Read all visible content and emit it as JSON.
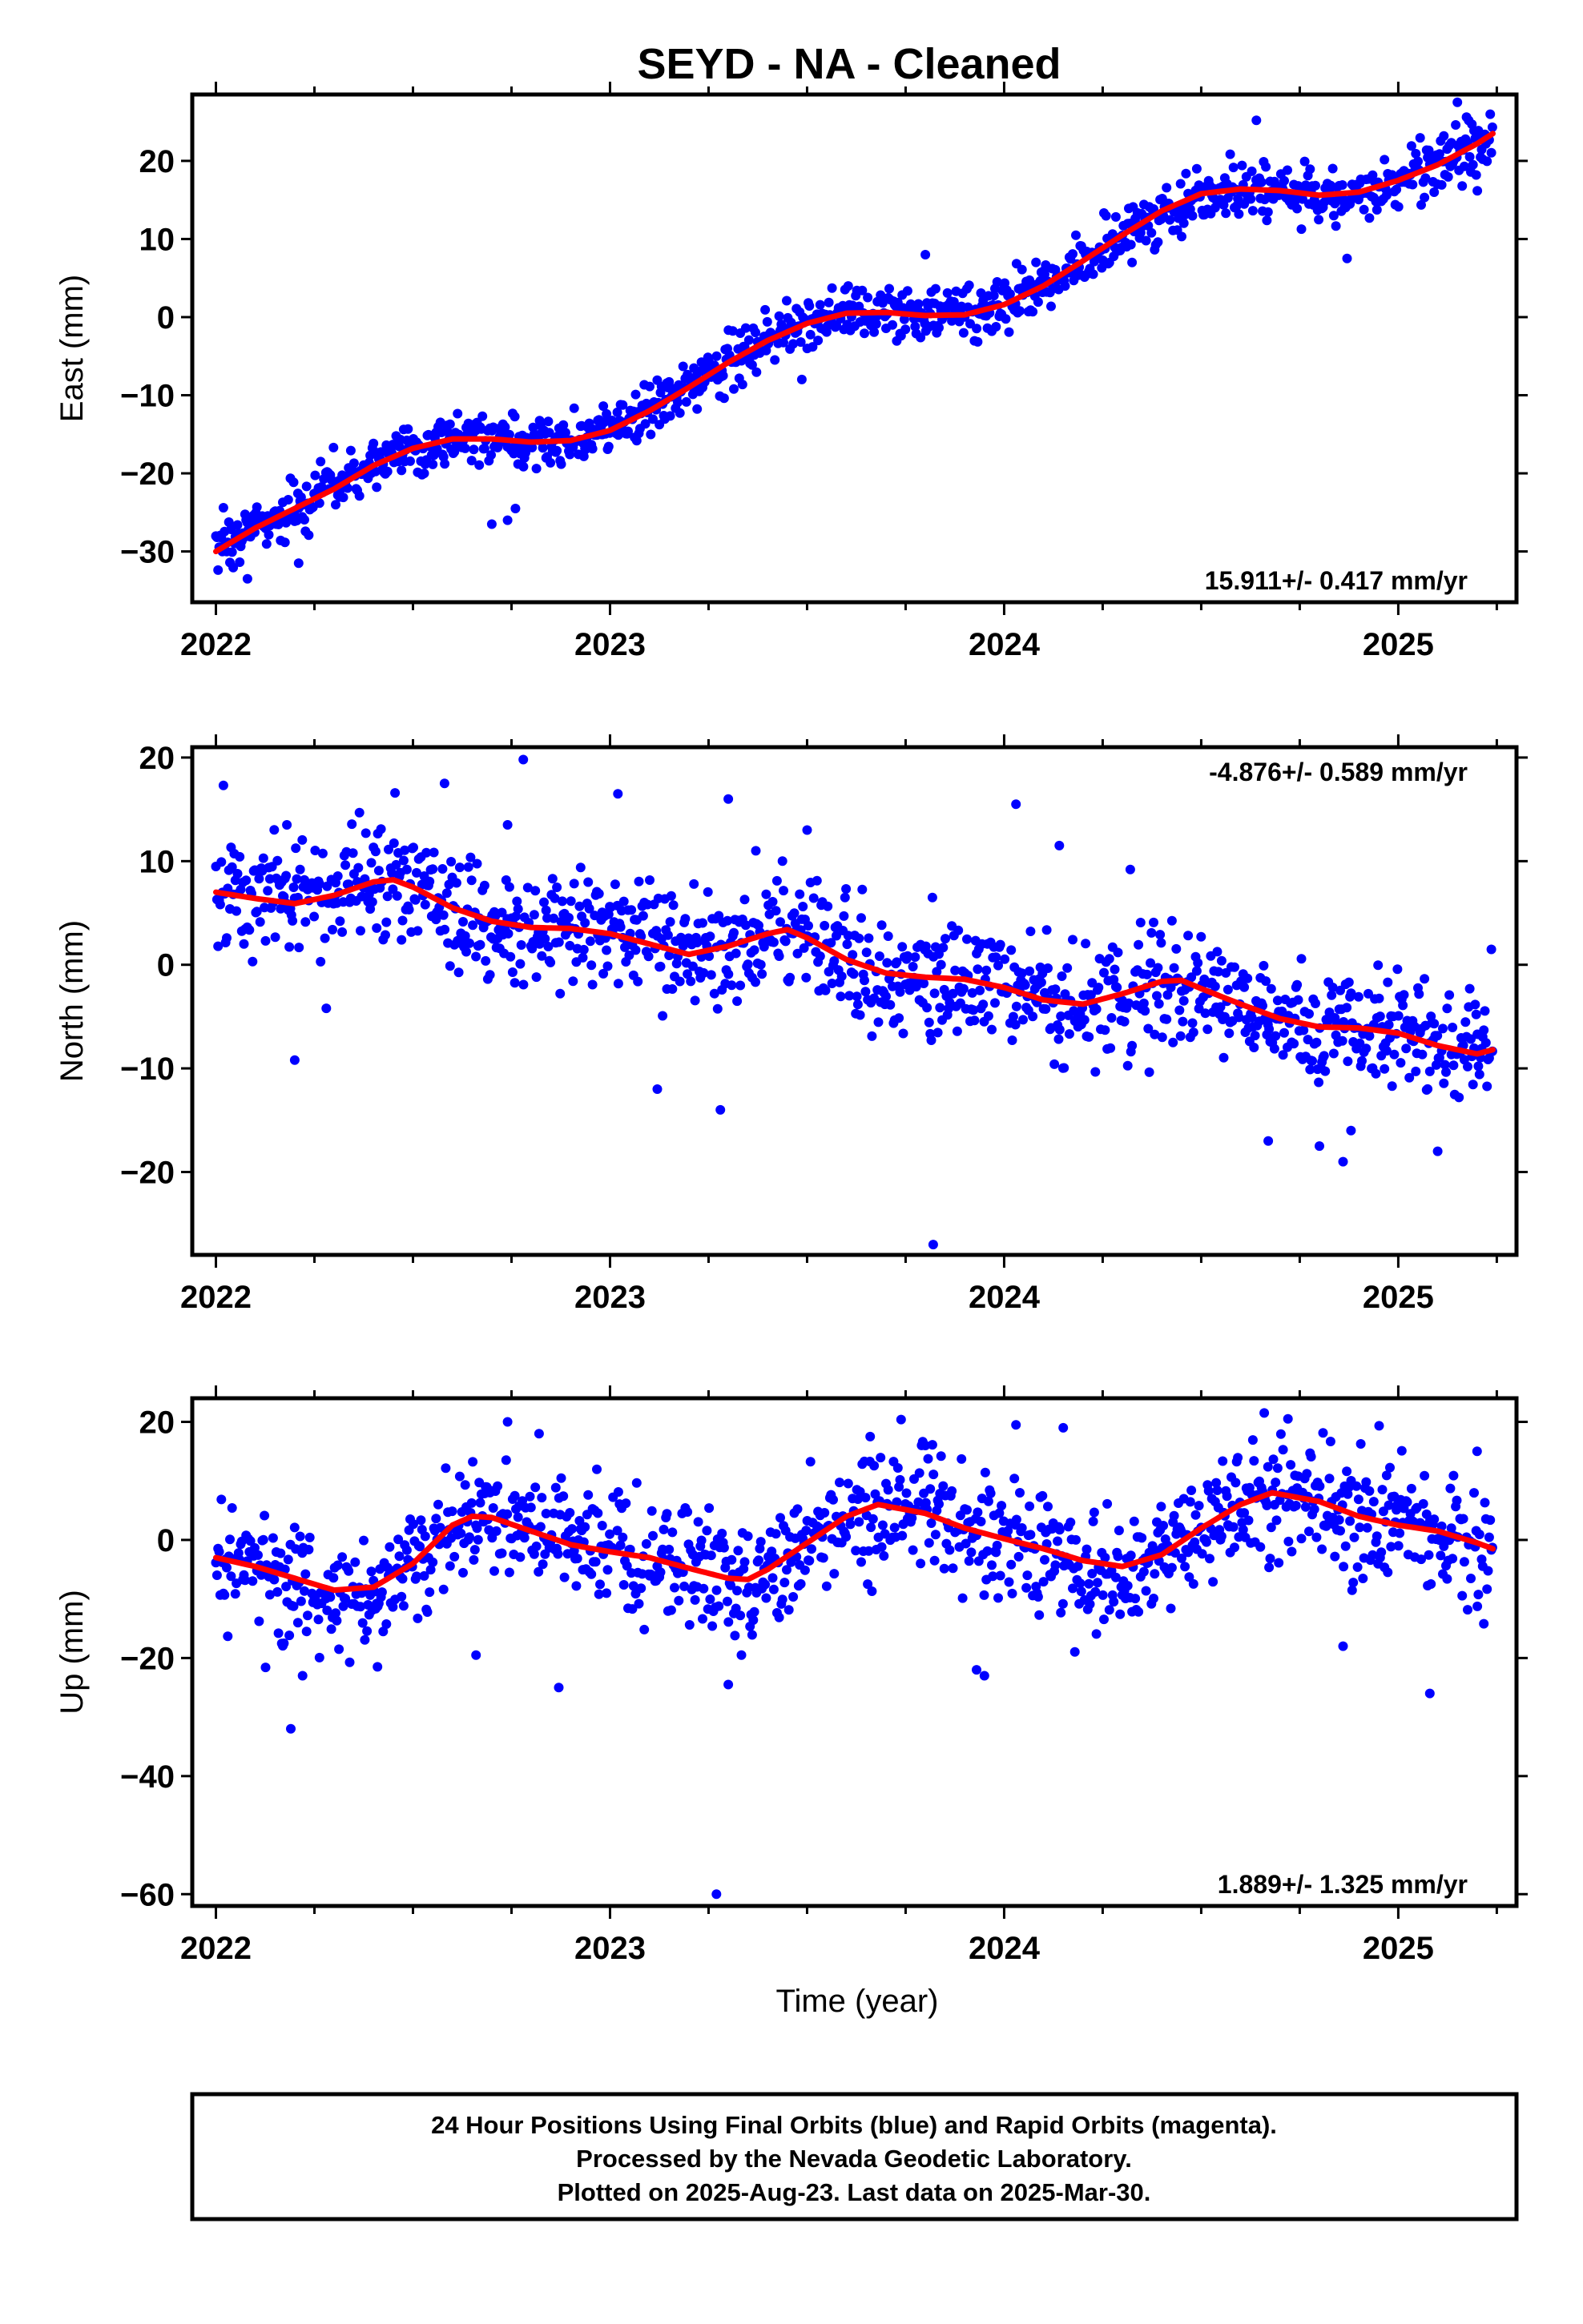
{
  "chart_data": {
    "type": "scatter",
    "title": "SEYD  - NA - Cleaned",
    "xlabel": "Time (year)",
    "xlim": [
      2021.94,
      2025.3
    ],
    "x_ticks": [
      2022,
      2023,
      2024,
      2025
    ],
    "x_tick_labels": [
      "2022",
      "2023",
      "2024",
      "2025"
    ],
    "x_minor_step": 0.25,
    "data_range": [
      2022.0,
      2025.24
    ],
    "marker_color": "#0000ff",
    "fit_color": "#ff0000",
    "grid": false,
    "panels": [
      {
        "id": "east",
        "ylabel": "East (mm)",
        "ylim": [
          -36.5,
          28.5
        ],
        "y_ticks": [
          -30,
          -20,
          -10,
          0,
          10,
          20
        ],
        "y_tick_labels": [
          "−30",
          "−20",
          "−10",
          "0",
          "10",
          "20"
        ],
        "rate": "15.911+/- 0.417 mm/yr",
        "rate_position": "bottom-right",
        "noise": 1.8,
        "outliers": [
          [
            2022.74,
            -26.0
          ],
          [
            2022.7,
            -26.5
          ],
          [
            2022.76,
            -24.5
          ],
          [
            2022.08,
            -33.5
          ],
          [
            2024.64,
            25.2
          ],
          [
            2023.8,
            8.0
          ],
          [
            2025.15,
            27.5
          ],
          [
            2022.21,
            -31.5
          ],
          [
            2024.87,
            7.5
          ]
        ],
        "fit": [
          [
            2022.0,
            -30.0
          ],
          [
            2022.1,
            -27.0
          ],
          [
            2022.2,
            -24.5
          ],
          [
            2022.3,
            -22.0
          ],
          [
            2022.4,
            -19.0
          ],
          [
            2022.5,
            -16.8
          ],
          [
            2022.6,
            -15.6
          ],
          [
            2022.7,
            -15.6
          ],
          [
            2022.8,
            -16.0
          ],
          [
            2022.9,
            -15.8
          ],
          [
            2023.0,
            -14.5
          ],
          [
            2023.1,
            -12.0
          ],
          [
            2023.2,
            -9.0
          ],
          [
            2023.3,
            -5.8
          ],
          [
            2023.4,
            -3.0
          ],
          [
            2023.5,
            -0.8
          ],
          [
            2023.6,
            0.5
          ],
          [
            2023.7,
            0.6
          ],
          [
            2023.8,
            0.2
          ],
          [
            2023.9,
            0.3
          ],
          [
            2024.0,
            1.6
          ],
          [
            2024.1,
            4.0
          ],
          [
            2024.2,
            7.2
          ],
          [
            2024.3,
            10.5
          ],
          [
            2024.4,
            13.6
          ],
          [
            2024.5,
            15.8
          ],
          [
            2024.6,
            16.4
          ],
          [
            2024.7,
            16.2
          ],
          [
            2024.8,
            15.6
          ],
          [
            2024.9,
            16.0
          ],
          [
            2025.0,
            17.5
          ],
          [
            2025.1,
            19.5
          ],
          [
            2025.2,
            22.2
          ],
          [
            2025.24,
            23.5
          ]
        ]
      },
      {
        "id": "north",
        "ylabel": "North (mm)",
        "ylim": [
          -28,
          21
        ],
        "y_ticks": [
          -20,
          -10,
          0,
          10,
          20
        ],
        "y_tick_labels": [
          "−20",
          "−10",
          "0",
          "10",
          "20"
        ],
        "rate": "-4.876+/- 0.589 mm/yr",
        "rate_position": "top-right",
        "noise": 2.8,
        "outliers": [
          [
            2022.2,
            -9.2
          ],
          [
            2022.18,
            13.5
          ],
          [
            2022.74,
            13.5
          ],
          [
            2022.78,
            19.8
          ],
          [
            2022.58,
            17.5
          ],
          [
            2023.02,
            16.5
          ],
          [
            2023.12,
            -12.0
          ],
          [
            2023.28,
            -14.0
          ],
          [
            2023.3,
            16.0
          ],
          [
            2023.5,
            13.0
          ],
          [
            2023.82,
            -27.0
          ],
          [
            2024.03,
            15.5
          ],
          [
            2024.14,
            11.5
          ],
          [
            2024.32,
            9.2
          ],
          [
            2024.67,
            -17.0
          ],
          [
            2024.8,
            -17.5
          ],
          [
            2024.86,
            -19.0
          ],
          [
            2025.1,
            -18.0
          ],
          [
            2023.37,
            11.0
          ],
          [
            2024.88,
            -16.0
          ],
          [
            2022.28,
            -4.2
          ]
        ],
        "fit": [
          [
            2022.0,
            7.0
          ],
          [
            2022.1,
            6.4
          ],
          [
            2022.2,
            5.9
          ],
          [
            2022.3,
            6.7
          ],
          [
            2022.4,
            8.0
          ],
          [
            2022.45,
            8.2
          ],
          [
            2022.5,
            7.5
          ],
          [
            2022.6,
            5.5
          ],
          [
            2022.7,
            4.2
          ],
          [
            2022.8,
            3.6
          ],
          [
            2022.9,
            3.5
          ],
          [
            2023.0,
            3.0
          ],
          [
            2023.1,
            2.0
          ],
          [
            2023.2,
            1.0
          ],
          [
            2023.3,
            1.8
          ],
          [
            2023.4,
            3.0
          ],
          [
            2023.45,
            3.4
          ],
          [
            2023.5,
            2.6
          ],
          [
            2023.6,
            0.5
          ],
          [
            2023.7,
            -0.8
          ],
          [
            2023.8,
            -1.2
          ],
          [
            2023.9,
            -1.4
          ],
          [
            2024.0,
            -2.2
          ],
          [
            2024.1,
            -3.4
          ],
          [
            2024.2,
            -3.8
          ],
          [
            2024.3,
            -2.8
          ],
          [
            2024.4,
            -1.6
          ],
          [
            2024.45,
            -1.5
          ],
          [
            2024.5,
            -2.3
          ],
          [
            2024.6,
            -3.8
          ],
          [
            2024.7,
            -5.2
          ],
          [
            2024.8,
            -6.0
          ],
          [
            2024.9,
            -6.1
          ],
          [
            2025.0,
            -6.6
          ],
          [
            2025.1,
            -7.8
          ],
          [
            2025.2,
            -8.6
          ],
          [
            2025.24,
            -8.2
          ]
        ]
      },
      {
        "id": "up",
        "ylabel": "Up (mm)",
        "ylim": [
          -62,
          24
        ],
        "y_ticks": [
          -60,
          -40,
          -20,
          0,
          20
        ],
        "y_tick_labels": [
          "−60",
          "−40",
          "−20",
          "0",
          "20"
        ],
        "rate": "1.889+/- 1.325 mm/yr",
        "rate_position": "bottom-right",
        "noise": 5.0,
        "outliers": [
          [
            2022.19,
            -32.0
          ],
          [
            2022.22,
            -23.0
          ],
          [
            2022.41,
            -21.5
          ],
          [
            2022.66,
            -19.5
          ],
          [
            2022.74,
            20.0
          ],
          [
            2022.87,
            -25.0
          ],
          [
            2023.27,
            -60.0
          ],
          [
            2023.3,
            -24.5
          ],
          [
            2023.66,
            17.5
          ],
          [
            2023.95,
            -23.0
          ],
          [
            2024.03,
            19.5
          ],
          [
            2024.15,
            19.0
          ],
          [
            2024.66,
            21.5
          ],
          [
            2024.72,
            20.5
          ],
          [
            2025.08,
            -26.0
          ],
          [
            2025.2,
            15.0
          ],
          [
            2022.82,
            18.0
          ],
          [
            2023.8,
            16.0
          ],
          [
            2024.86,
            -18.0
          ],
          [
            2023.93,
            -22.0
          ]
        ],
        "fit": [
          [
            2022.0,
            -3.0
          ],
          [
            2022.1,
            -4.5
          ],
          [
            2022.2,
            -6.5
          ],
          [
            2022.3,
            -8.5
          ],
          [
            2022.4,
            -8.0
          ],
          [
            2022.5,
            -4.0
          ],
          [
            2022.6,
            2.5
          ],
          [
            2022.65,
            4.0
          ],
          [
            2022.7,
            3.8
          ],
          [
            2022.8,
            1.5
          ],
          [
            2022.9,
            -0.8
          ],
          [
            2023.0,
            -2.0
          ],
          [
            2023.1,
            -3.0
          ],
          [
            2023.2,
            -4.8
          ],
          [
            2023.3,
            -6.5
          ],
          [
            2023.35,
            -6.7
          ],
          [
            2023.4,
            -5.0
          ],
          [
            2023.5,
            -0.5
          ],
          [
            2023.6,
            4.0
          ],
          [
            2023.68,
            6.0
          ],
          [
            2023.8,
            4.5
          ],
          [
            2023.9,
            2.0
          ],
          [
            2024.0,
            0.2
          ],
          [
            2024.1,
            -1.5
          ],
          [
            2024.2,
            -3.5
          ],
          [
            2024.3,
            -4.5
          ],
          [
            2024.4,
            -2.5
          ],
          [
            2024.5,
            2.0
          ],
          [
            2024.6,
            6.0
          ],
          [
            2024.68,
            8.0
          ],
          [
            2024.8,
            6.5
          ],
          [
            2024.9,
            4.0
          ],
          [
            2025.0,
            2.5
          ],
          [
            2025.1,
            1.5
          ],
          [
            2025.2,
            -0.5
          ],
          [
            2025.24,
            -1.5
          ]
        ]
      }
    ],
    "footer_lines": [
      "24 Hour Positions Using Final Orbits (blue) and Rapid Orbits (magenta).",
      "Processed by the Nevada Geodetic Laboratory.",
      "Plotted on 2025-Aug-23. Last data on 2025-Mar-30."
    ]
  }
}
